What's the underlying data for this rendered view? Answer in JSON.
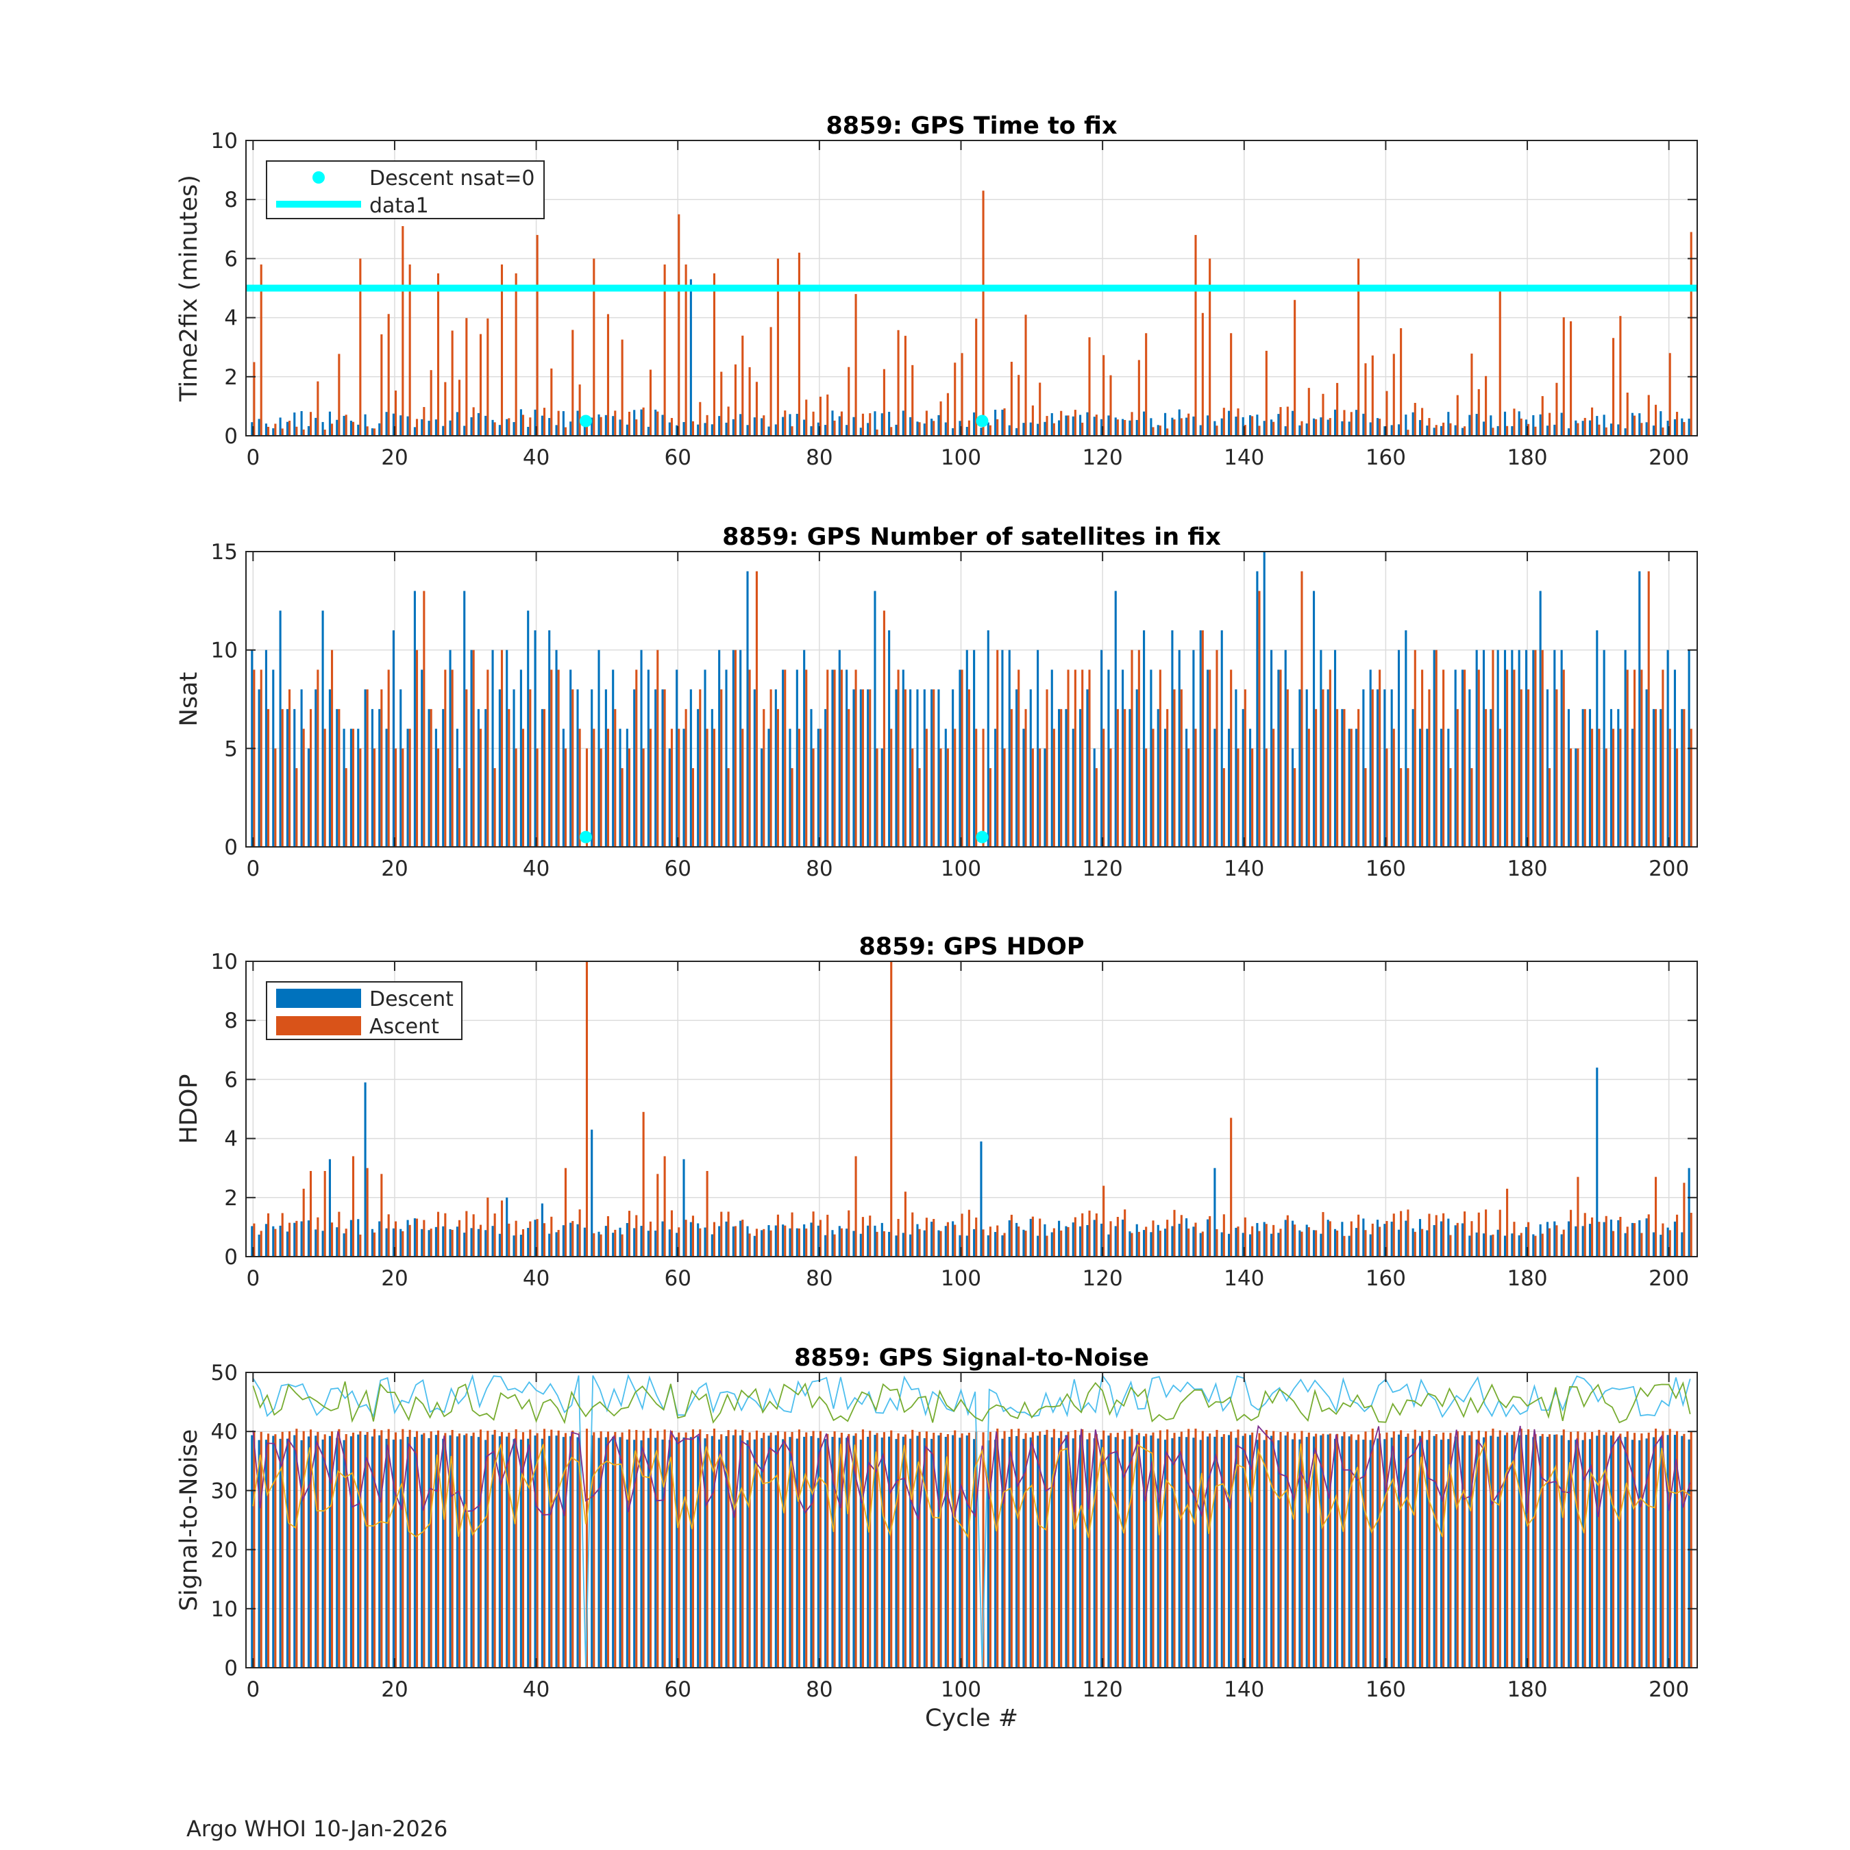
{
  "footer": "Argo WHOI 10-Jan-2026",
  "xlabel": "Cycle #",
  "colors": {
    "descent": "#0072BD",
    "ascent": "#D95319",
    "cyan": "#00FFFF",
    "snr_lines": [
      "#4DBEEE",
      "#77AC30",
      "#7E2F8E",
      "#EDB120"
    ]
  },
  "chart_data": [
    {
      "type": "bar",
      "title": "8859: GPS Time to fix",
      "ylabel": "Time2fix (minutes)",
      "xlim": [
        -1,
        204
      ],
      "ylim": [
        0,
        10
      ],
      "xticks": [
        0,
        20,
        40,
        60,
        80,
        100,
        120,
        140,
        160,
        180,
        200
      ],
      "yticks": [
        0,
        2,
        4,
        6,
        8,
        10
      ],
      "legend": {
        "location": "top-left",
        "entries": [
          "Descent nsat=0",
          "data1"
        ]
      },
      "reference_line": {
        "name": "data1",
        "y": 5
      },
      "markers": [
        {
          "x": 47,
          "y": 0.5
        },
        {
          "x": 103,
          "y": 0.5
        }
      ],
      "notable_ascent": [
        [
          1,
          5.8
        ],
        [
          15,
          6.0
        ],
        [
          21,
          7.1
        ],
        [
          22,
          5.8
        ],
        [
          26,
          5.5
        ],
        [
          35,
          5.8
        ],
        [
          37,
          5.5
        ],
        [
          40,
          6.8
        ],
        [
          48,
          6.0
        ],
        [
          58,
          5.8
        ],
        [
          60,
          7.5
        ],
        [
          61,
          5.8
        ],
        [
          65,
          5.5
        ],
        [
          74,
          6.0
        ],
        [
          77,
          6.2
        ],
        [
          85,
          4.8
        ],
        [
          103,
          8.3
        ],
        [
          109,
          4.1
        ],
        [
          133,
          6.8
        ],
        [
          135,
          6.0
        ],
        [
          147,
          4.6
        ],
        [
          156,
          6.0
        ],
        [
          176,
          4.9
        ],
        [
          203,
          6.9
        ]
      ],
      "notable_descent": [
        [
          62,
          5.3
        ]
      ]
    },
    {
      "type": "bar",
      "title": "8859: GPS Number of satellites in fix",
      "ylabel": "Nsat",
      "xlim": [
        -1,
        204
      ],
      "ylim": [
        0,
        15
      ],
      "xticks": [
        0,
        20,
        40,
        60,
        80,
        100,
        120,
        140,
        160,
        180,
        200
      ],
      "yticks": [
        0,
        5,
        10,
        15
      ],
      "markers": [
        {
          "x": 47,
          "y": 0.5
        },
        {
          "x": 103,
          "y": 0.5
        }
      ],
      "notable_ascent": [
        [
          24,
          13
        ],
        [
          71,
          14
        ],
        [
          89,
          12
        ],
        [
          134,
          11
        ],
        [
          142,
          13
        ],
        [
          148,
          14
        ],
        [
          197,
          14
        ]
      ],
      "notable_descent": [
        [
          4,
          12
        ],
        [
          10,
          12
        ],
        [
          23,
          13
        ],
        [
          30,
          13
        ],
        [
          39,
          12
        ],
        [
          70,
          14
        ],
        [
          88,
          13
        ],
        [
          104,
          11
        ],
        [
          122,
          13
        ],
        [
          142,
          14
        ],
        [
          143,
          15
        ],
        [
          150,
          13
        ],
        [
          182,
          13
        ],
        [
          196,
          14
        ]
      ]
    },
    {
      "type": "bar",
      "title": "8859: GPS HDOP",
      "ylabel": "HDOP",
      "xlim": [
        -1,
        204
      ],
      "ylim": [
        0,
        10
      ],
      "xticks": [
        0,
        20,
        40,
        60,
        80,
        100,
        120,
        140,
        160,
        180,
        200
      ],
      "yticks": [
        0,
        2,
        4,
        6,
        8,
        10
      ],
      "legend": {
        "location": "top-left",
        "entries": [
          "Descent",
          "Ascent"
        ]
      },
      "notable_ascent": [
        [
          7,
          2.3
        ],
        [
          8,
          2.9
        ],
        [
          10,
          2.9
        ],
        [
          14,
          3.4
        ],
        [
          16,
          3.0
        ],
        [
          18,
          2.8
        ],
        [
          33,
          2.0
        ],
        [
          35,
          1.9
        ],
        [
          44,
          3.0
        ],
        [
          47,
          10
        ],
        [
          55,
          4.9
        ],
        [
          57,
          2.8
        ],
        [
          58,
          3.4
        ],
        [
          64,
          2.9
        ],
        [
          85,
          3.4
        ],
        [
          90,
          10
        ],
        [
          92,
          2.2
        ],
        [
          120,
          2.4
        ],
        [
          138,
          4.7
        ],
        [
          177,
          2.3
        ],
        [
          187,
          2.7
        ],
        [
          198,
          2.7
        ],
        [
          202,
          2.5
        ]
      ],
      "notable_descent": [
        [
          11,
          3.3
        ],
        [
          16,
          5.9
        ],
        [
          36,
          2.0
        ],
        [
          41,
          1.8
        ],
        [
          48,
          4.3
        ],
        [
          61,
          3.3
        ],
        [
          103,
          3.9
        ],
        [
          136,
          3.0
        ],
        [
          190,
          6.4
        ],
        [
          203,
          3.0
        ]
      ]
    },
    {
      "type": "bar+line",
      "title": "8859: GPS Signal-to-Noise",
      "ylabel": "Signal-to-Noise",
      "xlabel": "Cycle #",
      "xlim": [
        -1,
        204
      ],
      "ylim": [
        0,
        50
      ],
      "xticks": [
        0,
        20,
        40,
        60,
        80,
        100,
        120,
        140,
        160,
        180,
        200
      ],
      "yticks": [
        0,
        10,
        20,
        30,
        40,
        50
      ],
      "bar_level_descent": 39,
      "bar_level_ascent": 40,
      "dropouts": [
        {
          "x": 47,
          "y": 0
        },
        {
          "x": 103,
          "y": 0
        }
      ],
      "line_levels": [
        46,
        45,
        33,
        30
      ]
    }
  ]
}
